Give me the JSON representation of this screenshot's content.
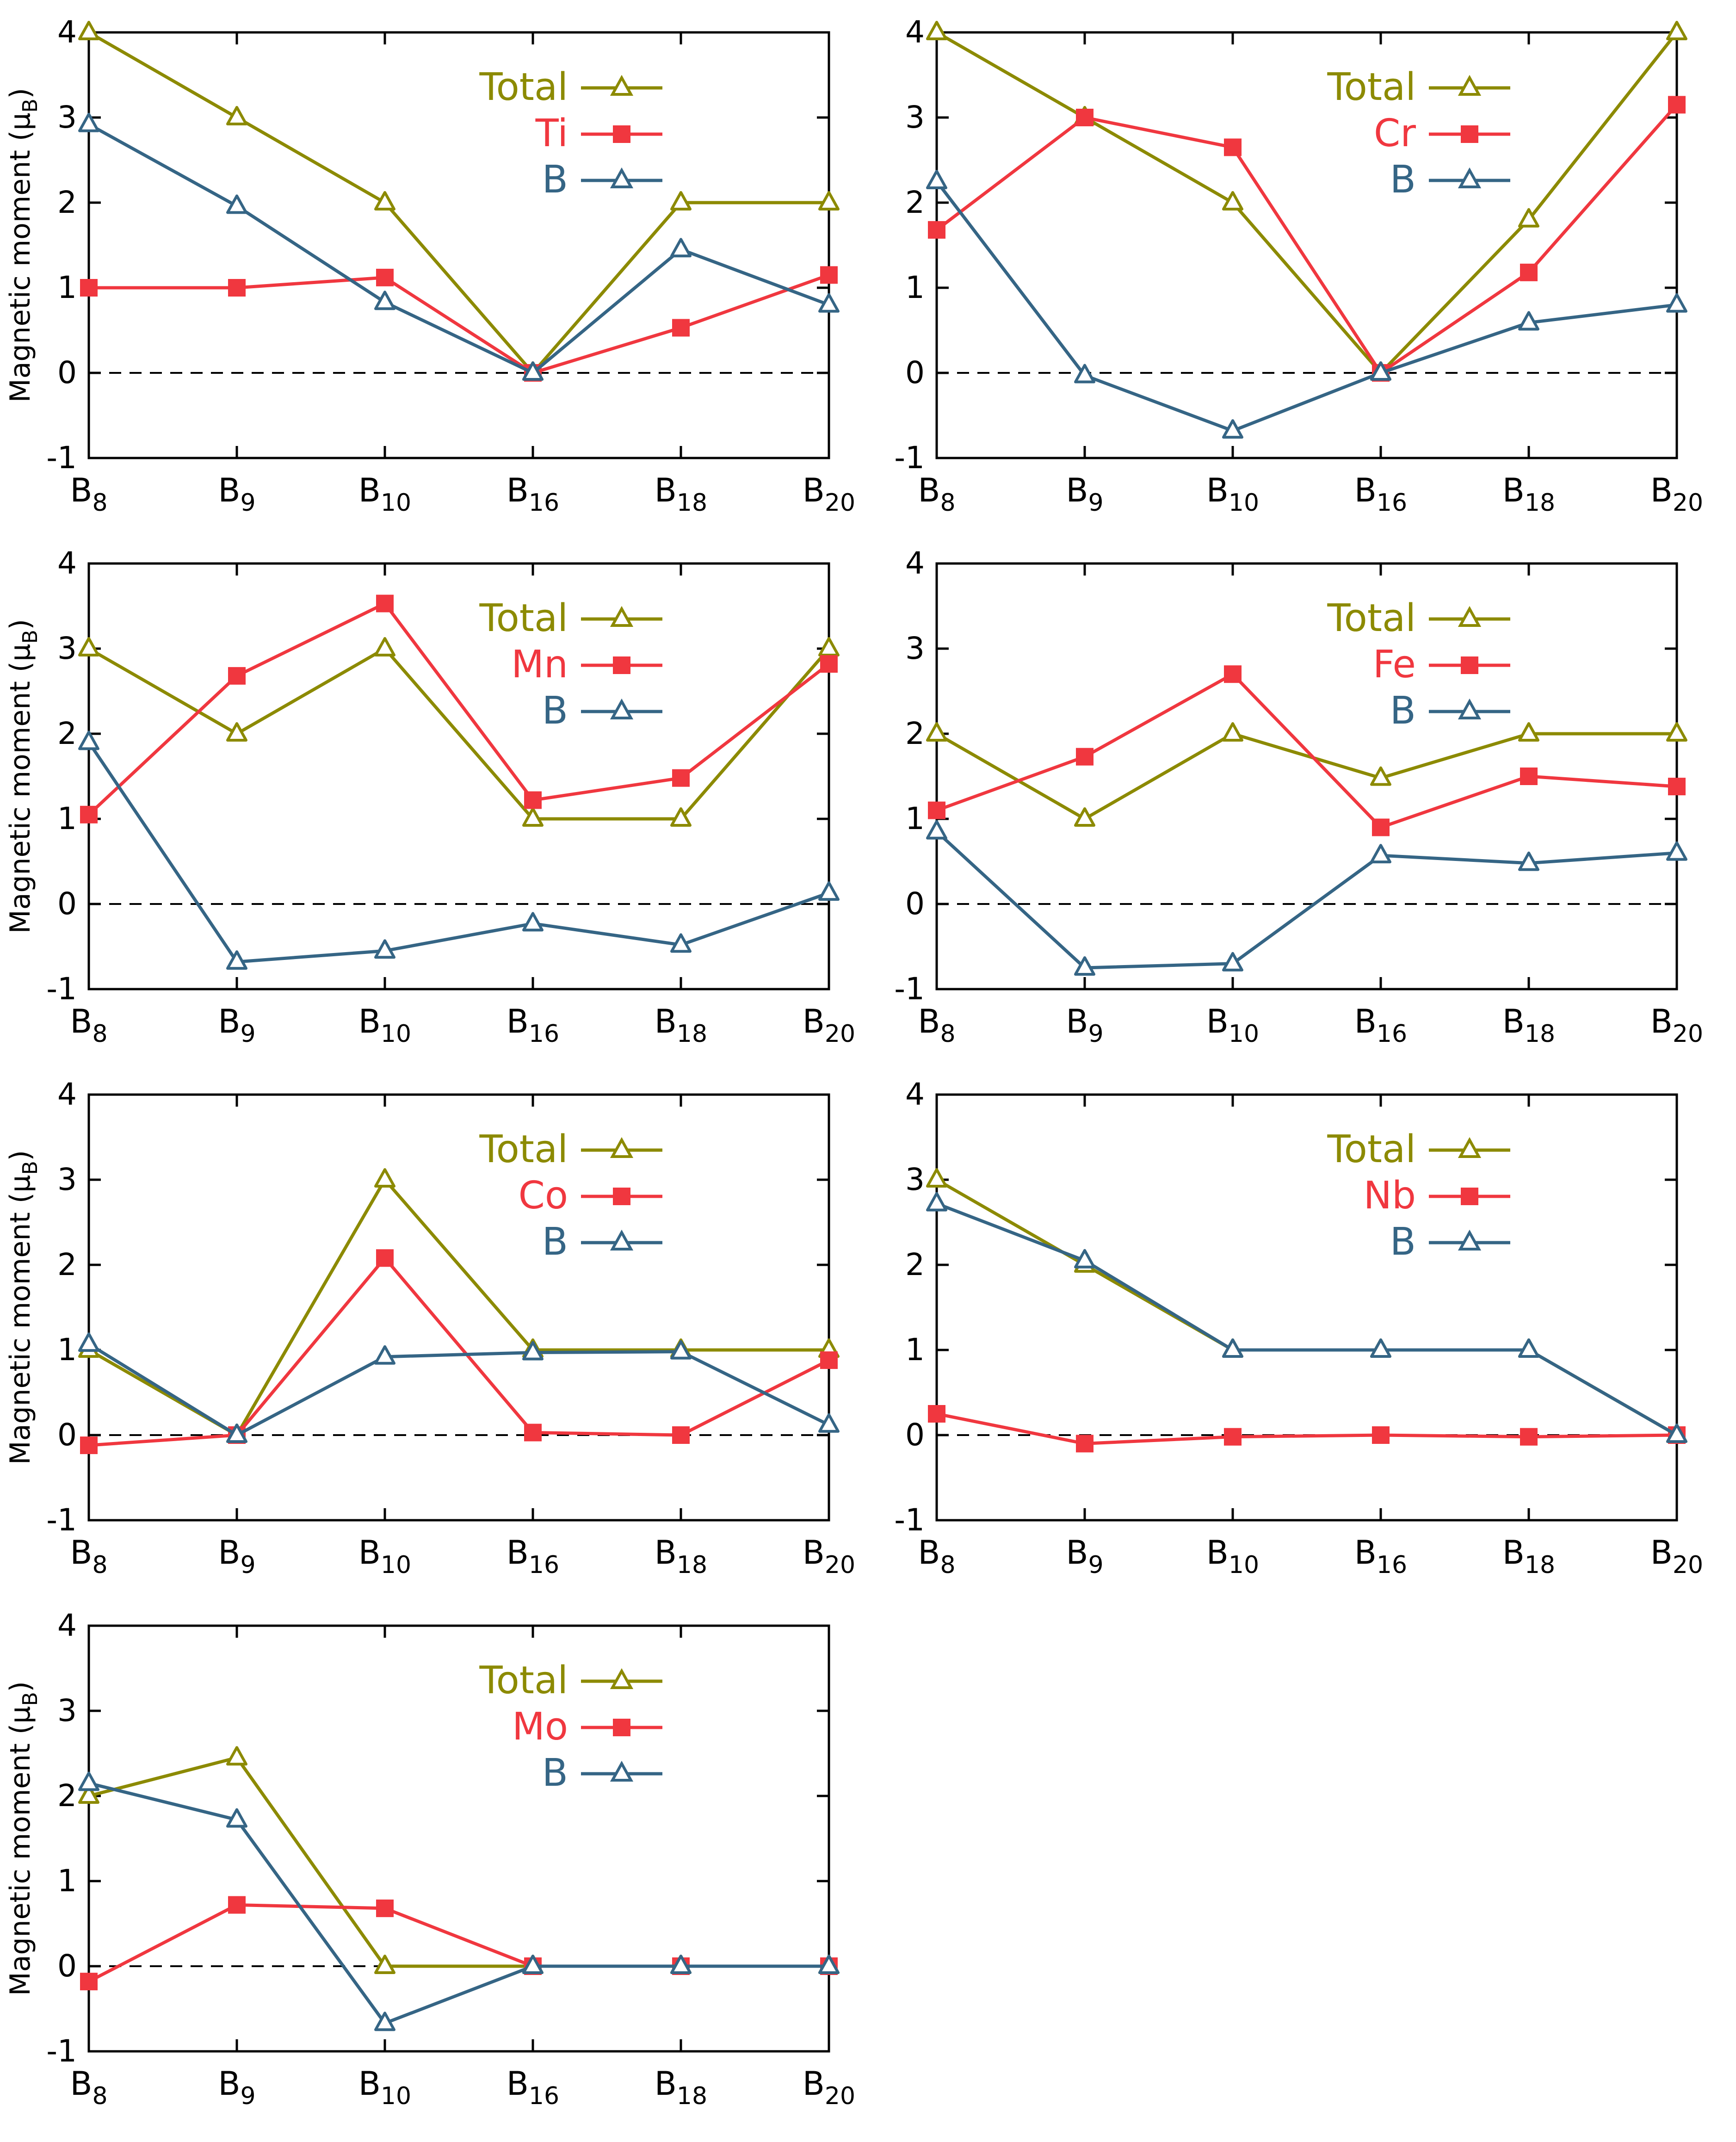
{
  "colors": {
    "total": "#8c8a00",
    "metal": "#f0373f",
    "boron": "#356585",
    "axis": "#000000",
    "zero": "#000000"
  },
  "shared": {
    "ylabel_main": "Magnetic moment (μ",
    "ylabel_sub": "B",
    "ylabel_close": ")",
    "y_ticks": [
      "-1",
      "0",
      "1",
      "2",
      "3",
      "4"
    ],
    "x_base": "B",
    "x_subs": [
      "8",
      "9",
      "10",
      "16",
      "18",
      "20"
    ],
    "legend_total": "Total",
    "legend_boron": "B",
    "ylim": [
      -1,
      4
    ]
  },
  "chart_data": [
    {
      "type": "line",
      "metal": "Ti",
      "categories": [
        "B8",
        "B9",
        "B10",
        "B16",
        "B18",
        "B20"
      ],
      "ylim": [
        -1,
        4
      ],
      "series": [
        {
          "name": "Total",
          "values": [
            4,
            3,
            2,
            0,
            2,
            2
          ]
        },
        {
          "name": "Ti",
          "values": [
            1.0,
            1.0,
            1.12,
            0.0,
            0.53,
            1.15
          ]
        },
        {
          "name": "B",
          "values": [
            2.92,
            1.96,
            0.83,
            0.0,
            1.45,
            0.8
          ]
        }
      ]
    },
    {
      "type": "line",
      "metal": "Cr",
      "categories": [
        "B8",
        "B9",
        "B10",
        "B16",
        "B18",
        "B20"
      ],
      "ylim": [
        -1,
        4
      ],
      "series": [
        {
          "name": "Total",
          "values": [
            4,
            3,
            2,
            0,
            1.8,
            4
          ]
        },
        {
          "name": "Cr",
          "values": [
            1.68,
            3.0,
            2.65,
            0.0,
            1.18,
            3.15
          ]
        },
        {
          "name": "B",
          "values": [
            2.25,
            -0.03,
            -0.68,
            0.0,
            0.59,
            0.8
          ]
        }
      ]
    },
    {
      "type": "line",
      "metal": "Mn",
      "categories": [
        "B8",
        "B9",
        "B10",
        "B16",
        "B18",
        "B20"
      ],
      "ylim": [
        -1,
        4
      ],
      "series": [
        {
          "name": "Total",
          "values": [
            3,
            2,
            3,
            1,
            1,
            3
          ]
        },
        {
          "name": "Mn",
          "values": [
            1.05,
            2.68,
            3.53,
            1.22,
            1.48,
            2.82
          ]
        },
        {
          "name": "B",
          "values": [
            1.9,
            -0.68,
            -0.55,
            -0.23,
            -0.48,
            0.13
          ]
        }
      ]
    },
    {
      "type": "line",
      "metal": "Fe",
      "categories": [
        "B8",
        "B9",
        "B10",
        "B16",
        "B18",
        "B20"
      ],
      "ylim": [
        -1,
        4
      ],
      "series": [
        {
          "name": "Total",
          "values": [
            2,
            1,
            2,
            1.48,
            2,
            2
          ]
        },
        {
          "name": "Fe",
          "values": [
            1.1,
            1.73,
            2.7,
            0.9,
            1.5,
            1.38
          ]
        },
        {
          "name": "B",
          "values": [
            0.85,
            -0.75,
            -0.7,
            0.57,
            0.48,
            0.6
          ]
        }
      ]
    },
    {
      "type": "line",
      "metal": "Co",
      "categories": [
        "B8",
        "B9",
        "B10",
        "B16",
        "B18",
        "B20"
      ],
      "ylim": [
        -1,
        4
      ],
      "series": [
        {
          "name": "Total",
          "values": [
            1,
            0,
            3,
            1,
            1,
            1
          ]
        },
        {
          "name": "Co",
          "values": [
            -0.12,
            0.0,
            2.08,
            0.03,
            0.0,
            0.88
          ]
        },
        {
          "name": "B",
          "values": [
            1.07,
            0.0,
            0.92,
            0.97,
            0.98,
            0.12
          ]
        }
      ]
    },
    {
      "type": "line",
      "metal": "Nb",
      "categories": [
        "B8",
        "B9",
        "B10",
        "B16",
        "B18",
        "B20"
      ],
      "ylim": [
        -1,
        4
      ],
      "series": [
        {
          "name": "Total",
          "values": [
            3,
            2,
            1,
            1,
            1,
            0
          ]
        },
        {
          "name": "Nb",
          "values": [
            0.25,
            -0.1,
            -0.02,
            0.0,
            -0.02,
            0.0
          ]
        },
        {
          "name": "B",
          "values": [
            2.72,
            2.05,
            1.0,
            1.0,
            1.0,
            0.0
          ]
        }
      ]
    },
    {
      "type": "line",
      "metal": "Mo",
      "categories": [
        "B8",
        "B9",
        "B10",
        "B16",
        "B18",
        "B20"
      ],
      "ylim": [
        -1,
        4
      ],
      "series": [
        {
          "name": "Total",
          "values": [
            2,
            2.45,
            0,
            0,
            0,
            0
          ]
        },
        {
          "name": "Mo",
          "values": [
            -0.18,
            0.72,
            0.68,
            0.0,
            0.0,
            0.0
          ]
        },
        {
          "name": "B",
          "values": [
            2.15,
            1.72,
            -0.67,
            0.0,
            0.0,
            0.0
          ]
        }
      ]
    }
  ]
}
